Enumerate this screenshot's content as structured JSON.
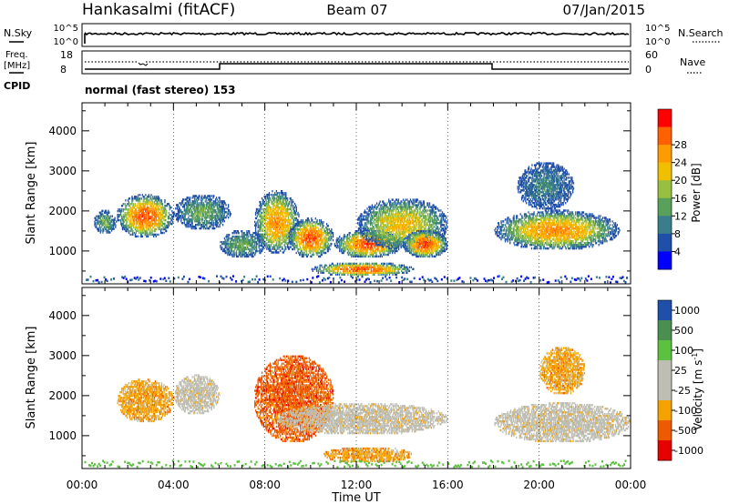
{
  "header": {
    "station": "Hankasalmi (fitACF)",
    "beam": "Beam 07",
    "date": "07/Jan/2015"
  },
  "control_panels": {
    "nsky": {
      "label": "N.Sky",
      "ticks_left": [
        "10^5",
        "10^0"
      ],
      "ticks_right": [
        "10^5",
        "10^0"
      ],
      "right_label": "N.Search"
    },
    "freq": {
      "label_line1": "Freq.",
      "label_line2": "[MHz]",
      "ticks_left": [
        "18",
        "8"
      ],
      "ticks_right": [
        "60",
        "0"
      ],
      "right_label": "Nave",
      "cpid_label": "CPID",
      "cpid_text": "normal (fast stereo) 153"
    }
  },
  "colors": {
    "power_scale": [
      "#0000ff",
      "#1f4fa8",
      "#3a7d8c",
      "#59a05a",
      "#97c043",
      "#f0c000",
      "#ff9a00",
      "#ff6000",
      "#ff0000"
    ],
    "velocity_scale": [
      "#e60000",
      "#ee5a00",
      "#f3a200",
      "#bebeb4",
      "#bebeb4",
      "#5cc040",
      "#4a8f50",
      "#1f4fa8"
    ]
  },
  "chart_data": [
    {
      "type": "heatmap",
      "title": "",
      "xlabel": "",
      "ylabel": "Slant Range [km]",
      "xlim": [
        "00:00",
        "24:00"
      ],
      "ylim": [
        180,
        4700
      ],
      "xticks": [
        "00:00",
        "04:00",
        "08:00",
        "12:00",
        "16:00",
        "20:00",
        "00:00"
      ],
      "yticks": [
        1000,
        2000,
        3000,
        4000
      ],
      "colorbar": {
        "label": "Power [dB]",
        "range": [
          0,
          32
        ],
        "ticks": [
          4,
          8,
          12,
          16,
          20,
          24,
          28
        ]
      },
      "echo_regions": [
        {
          "t": [
            1.5,
            4.0
          ],
          "range": [
            1300,
            2400
          ],
          "peak_db": 28
        },
        {
          "t": [
            4.0,
            6.5
          ],
          "range": [
            1500,
            2400
          ],
          "peak_db": 12
        },
        {
          "t": [
            6.0,
            8.0
          ],
          "range": [
            800,
            1500
          ],
          "peak_db": 10
        },
        {
          "t": [
            7.5,
            9.5
          ],
          "range": [
            900,
            2500
          ],
          "peak_db": 24
        },
        {
          "t": [
            9.0,
            11.0
          ],
          "range": [
            800,
            1800
          ],
          "peak_db": 28
        },
        {
          "t": [
            10.0,
            14.5
          ],
          "range": [
            350,
            700
          ],
          "peak_db": 28
        },
        {
          "t": [
            11.0,
            14.0
          ],
          "range": [
            800,
            1500
          ],
          "peak_db": 28
        },
        {
          "t": [
            12.0,
            16.0
          ],
          "range": [
            1000,
            2300
          ],
          "peak_db": 20
        },
        {
          "t": [
            14.0,
            16.0
          ],
          "range": [
            800,
            1500
          ],
          "peak_db": 28
        },
        {
          "t": [
            18.0,
            23.5
          ],
          "range": [
            1000,
            2000
          ],
          "peak_db": 24
        },
        {
          "t": [
            19.0,
            21.5
          ],
          "range": [
            2000,
            3200
          ],
          "peak_db": 8
        },
        {
          "t": [
            0.5,
            1.5
          ],
          "range": [
            1400,
            2000
          ],
          "peak_db": 12
        }
      ]
    },
    {
      "type": "heatmap",
      "title": "",
      "xlabel": "Time UT",
      "ylabel": "Slant Range [km]",
      "xlim": [
        "00:00",
        "24:00"
      ],
      "ylim": [
        180,
        4700
      ],
      "xticks": [
        "00:00",
        "04:00",
        "08:00",
        "12:00",
        "16:00",
        "20:00",
        "00:00"
      ],
      "yticks": [
        1000,
        2000,
        3000,
        4000
      ],
      "colorbar": {
        "label": "Velocity [m s",
        "label_sup": "-1",
        "label_end": "]",
        "ticks": [
          "1000",
          "500",
          "100",
          "25",
          "-25",
          "-100",
          "-500",
          "-1000"
        ]
      },
      "echo_regions": [
        {
          "t": [
            1.5,
            4.0
          ],
          "range": [
            1300,
            2400
          ],
          "velocity_class": "-100"
        },
        {
          "t": [
            4.0,
            6.0
          ],
          "range": [
            1500,
            2500
          ],
          "velocity_class": "-25"
        },
        {
          "t": [
            7.5,
            11.0
          ],
          "range": [
            800,
            3000
          ],
          "velocity_class": "-500"
        },
        {
          "t": [
            10.5,
            14.5
          ],
          "range": [
            300,
            700
          ],
          "velocity_class": "-100"
        },
        {
          "t": [
            8.5,
            16.0
          ],
          "range": [
            1000,
            1800
          ],
          "velocity_class": "-25"
        },
        {
          "t": [
            18.0,
            24.0
          ],
          "range": [
            800,
            1800
          ],
          "velocity_class": "-25"
        },
        {
          "t": [
            20.0,
            22.0
          ],
          "range": [
            2000,
            3200
          ],
          "velocity_class": "-100"
        }
      ]
    }
  ]
}
